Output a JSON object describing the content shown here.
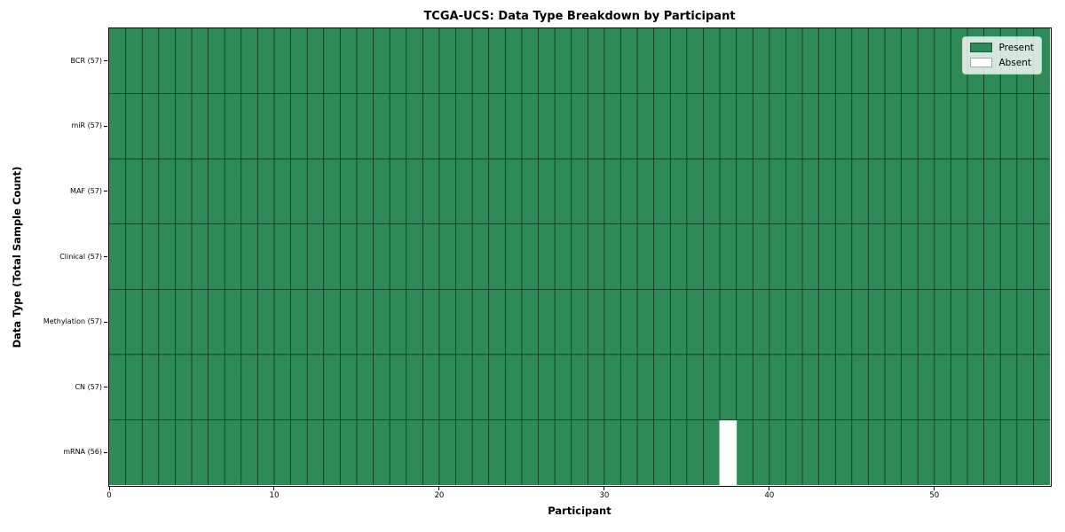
{
  "chart_data": {
    "type": "heatmap",
    "title": "TCGA-UCS: Data Type Breakdown by Participant",
    "xlabel": "Participant",
    "ylabel": "Data Type (Total Sample Count)",
    "rows_top_to_bottom": [
      {
        "label": "BCR (57)",
        "data_type": "BCR",
        "sample_count": 57
      },
      {
        "label": "miR (57)",
        "data_type": "miR",
        "sample_count": 57
      },
      {
        "label": "MAF (57)",
        "data_type": "MAF",
        "sample_count": 57
      },
      {
        "label": "Clinical (57)",
        "data_type": "Clinical",
        "sample_count": 57
      },
      {
        "label": "Methylation (57)",
        "data_type": "Methylation",
        "sample_count": 57
      },
      {
        "label": "CN (57)",
        "data_type": "CN",
        "sample_count": 57
      },
      {
        "label": "mRNA (56)",
        "data_type": "mRNA",
        "sample_count": 56
      }
    ],
    "n_participants": 57,
    "x_ticks": [
      0,
      10,
      20,
      30,
      40,
      50
    ],
    "x_range": [
      0,
      57
    ],
    "absent_cells": [
      {
        "row_label": "mRNA (56)",
        "participant_index": 37
      }
    ],
    "legend": {
      "position": "upper right",
      "entries": [
        {
          "label": "Present",
          "color": "#2e8b57"
        },
        {
          "label": "Absent",
          "color": "#ffffff"
        }
      ]
    },
    "colors": {
      "present": "#2e8b57",
      "absent": "#ffffff",
      "cell_edge": "#000000",
      "figure_background": "#ffffff"
    },
    "grid": true
  }
}
